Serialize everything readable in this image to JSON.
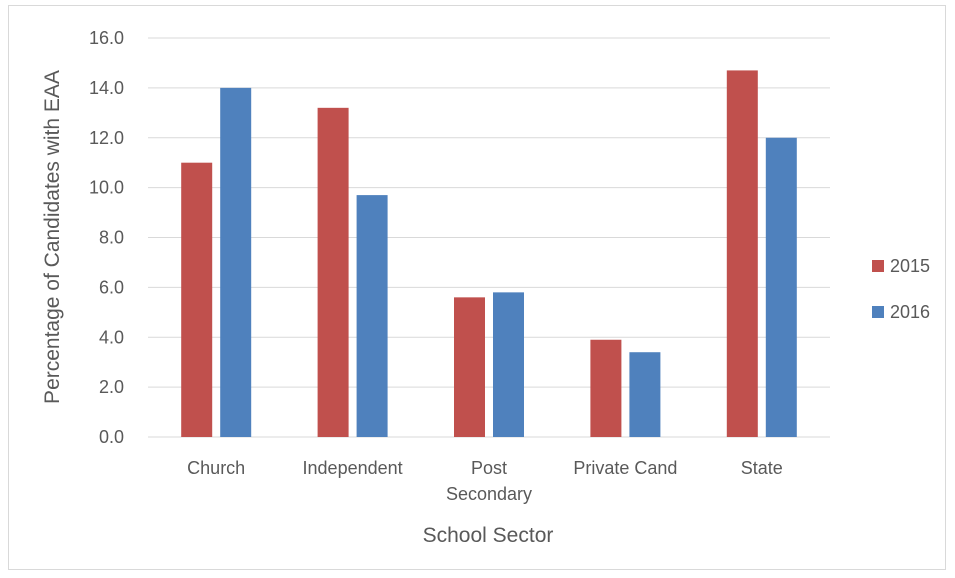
{
  "chart_data": {
    "type": "bar",
    "categories": [
      [
        "Church"
      ],
      [
        "Independent"
      ],
      [
        "Post",
        "Secondary"
      ],
      [
        "Private Cand"
      ],
      [
        "State"
      ]
    ],
    "series": [
      {
        "name": "2015",
        "color": "#c0504d",
        "values": [
          11.0,
          13.2,
          5.6,
          3.9,
          14.7
        ]
      },
      {
        "name": "2016",
        "color": "#4f81bd",
        "values": [
          14.0,
          9.7,
          5.8,
          3.4,
          12.0
        ]
      }
    ],
    "xlabel": "School Sector",
    "ylabel": "Percentage of Candidates with EAA",
    "ylim": [
      0,
      16
    ],
    "yticks": [
      "0.0",
      "2.0",
      "4.0",
      "6.0",
      "8.0",
      "10.0",
      "12.0",
      "14.0",
      "16.0"
    ],
    "grid": true,
    "legend_position": "right",
    "gridline_color": "#d9d9d9"
  }
}
